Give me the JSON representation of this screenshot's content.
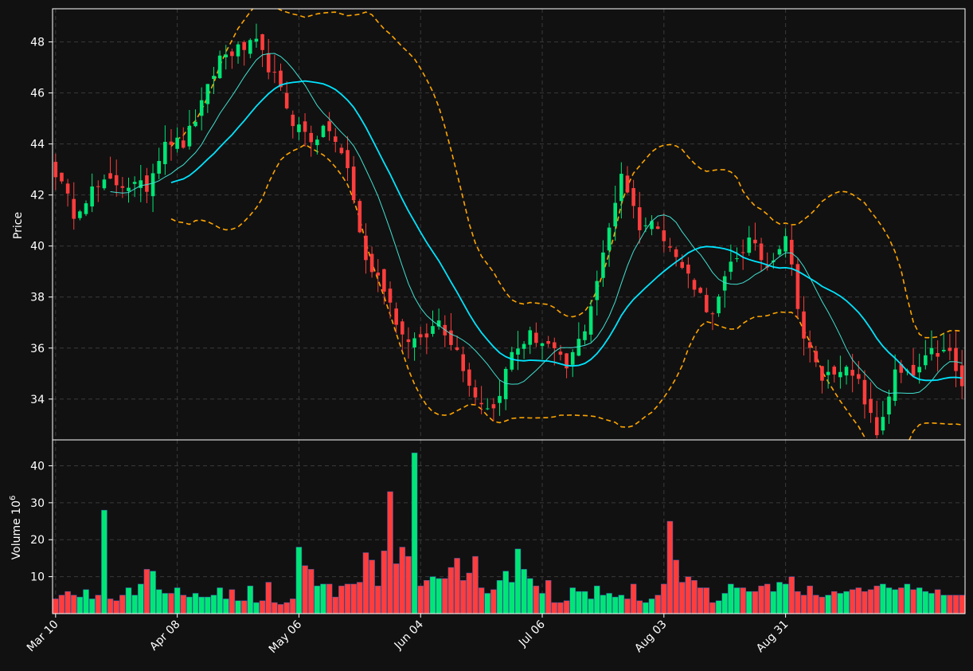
{
  "chart_data": [
    {
      "type": "candlestick",
      "ylabel": "Price",
      "ylim": [
        32.4,
        49.3
      ],
      "y_ticks": [
        34,
        36,
        38,
        40,
        42,
        44,
        46,
        48
      ],
      "x_tick_labels": [
        "Mar 10",
        "Apr 08",
        "May 06",
        "Jun 04",
        "Jul 06",
        "Aug 03",
        "Aug 31"
      ],
      "grid": true,
      "colors": {
        "up": "#00e676",
        "down": "#ff3d3d",
        "ma_fast": "#40e0d0",
        "ma_slow": "#00e5ff",
        "bands": "#ffa500",
        "background": "#111111"
      },
      "close_keypoints": [
        [
          0,
          42.9
        ],
        [
          3,
          41.3
        ],
        [
          6,
          42.2
        ],
        [
          9,
          42.5
        ],
        [
          12,
          42.4
        ],
        [
          15,
          42.3
        ],
        [
          18,
          44.2
        ],
        [
          21,
          44.0
        ],
        [
          24,
          45.5
        ],
        [
          27,
          47.4
        ],
        [
          30,
          47.7
        ],
        [
          33,
          47.9
        ],
        [
          36,
          46.6
        ],
        [
          39,
          44.9
        ],
        [
          42,
          44.2
        ],
        [
          45,
          44.6
        ],
        [
          48,
          43.0
        ],
        [
          51,
          39.4
        ],
        [
          54,
          38.4
        ],
        [
          57,
          36.5
        ],
        [
          60,
          36.2
        ],
        [
          63,
          37.1
        ],
        [
          66,
          35.9
        ],
        [
          69,
          34.1
        ],
        [
          72,
          33.6
        ],
        [
          75,
          35.8
        ],
        [
          78,
          36.5
        ],
        [
          81,
          36.1
        ],
        [
          84,
          35.2
        ],
        [
          87,
          36.8
        ],
        [
          90,
          39.6
        ],
        [
          93,
          42.9
        ],
        [
          96,
          40.8
        ],
        [
          99,
          40.9
        ],
        [
          102,
          39.5
        ],
        [
          105,
          38.5
        ],
        [
          108,
          37.2
        ],
        [
          111,
          39.3
        ],
        [
          114,
          40.2
        ],
        [
          117,
          39.2
        ],
        [
          120,
          40.5
        ],
        [
          123,
          36.4
        ],
        [
          126,
          34.8
        ],
        [
          129,
          35.3
        ],
        [
          132,
          34.6
        ],
        [
          135,
          32.6
        ],
        [
          138,
          35.0
        ],
        [
          141,
          34.9
        ],
        [
          144,
          35.8
        ],
        [
          147,
          35.8
        ],
        [
          149,
          34.4
        ]
      ],
      "ma_fast_window": 10,
      "ma_slow_window": 20,
      "band_window": 20,
      "band_std": 2
    },
    {
      "type": "bar",
      "ylabel": "Volume  10",
      "ylabel_exponent": "6",
      "y_ticks": [
        10,
        20,
        30,
        40
      ],
      "ylim": [
        0,
        47
      ],
      "volume_base": [
        4,
        5,
        6,
        5,
        4.5,
        6.5,
        4,
        5,
        5.5,
        4,
        3.5,
        5,
        7,
        5,
        8,
        12,
        11.5,
        6.5,
        5.5,
        5.5,
        7,
        5,
        4.5,
        5.5,
        4.5,
        4.5,
        5,
        7,
        4,
        6.5,
        3.5,
        3.5,
        7.5,
        3,
        3.5,
        8.5,
        3,
        2.5,
        3,
        4,
        18,
        13,
        12,
        7.5,
        8,
        8,
        4.5,
        7.5,
        8,
        8,
        8.5,
        16.5,
        14.5,
        7.5,
        17,
        33,
        13.5,
        18,
        15.5,
        13.5,
        7.5,
        9,
        10,
        9.5,
        9.5,
        12.5,
        15,
        9,
        11,
        15.5,
        7,
        5.5,
        6.5,
        9,
        11.5,
        8.5,
        17.5,
        12,
        9.5,
        7.5,
        5.5,
        9,
        3,
        3,
        3.5,
        7,
        6,
        6,
        4,
        7.5,
        5,
        5.5,
        4.5,
        5,
        4,
        8,
        3.5,
        3,
        4,
        5,
        8,
        25,
        14.5,
        8.5,
        10,
        9,
        7,
        7,
        3,
        3.5,
        5.5,
        8,
        7,
        7,
        6,
        6,
        7.5,
        8,
        6,
        8.5,
        8,
        10,
        6,
        5,
        7.5,
        5,
        4.5,
        5,
        6,
        5.5,
        6,
        6.5,
        7,
        6,
        6.5,
        7.5,
        8,
        7,
        6.5,
        7,
        8,
        6.5,
        7,
        6,
        5.5,
        6.5,
        5,
        5
      ],
      "volume_spikes": [
        [
          8,
          28
        ],
        [
          59,
          43.5
        ]
      ],
      "grid": true
    }
  ]
}
